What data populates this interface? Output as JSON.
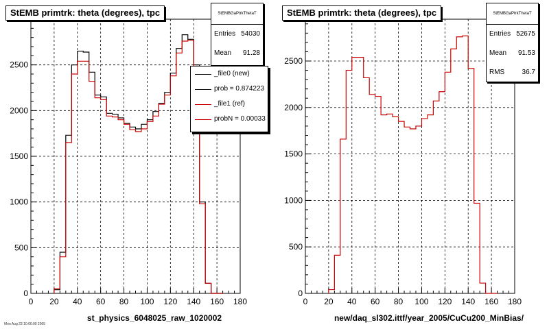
{
  "charts": [
    {
      "title": "StEMB primtrk: theta (degrees), tpc",
      "stats": {
        "name": "StEMBGaPtrkThetaT",
        "entries_label": "Entries",
        "entries": "54030",
        "mean_label": "Mean",
        "mean": "91.28"
      },
      "xlabel": "st_physics_6048025_raw_1020002",
      "legend": [
        {
          "label": "_file0 (new)",
          "color": "#000000"
        },
        {
          "label": "prob = 0.874223",
          "color": "#000000"
        },
        {
          "label": "_file1 (ref)",
          "color": "#cc0000"
        },
        {
          "label": "probN = 0.00033",
          "color": "#cc0000"
        }
      ],
      "footer": "Mon Aug 23 10:00:00 2005"
    },
    {
      "title": "StEMB primtrk: theta (degrees), tpc",
      "stats": {
        "name": "StEMBGaPtrkThetaT",
        "entries_label": "Entries",
        "entries": "52675",
        "mean_label": "Mean",
        "mean": "91.53",
        "rms_label": "RMS",
        "rms": "36.7"
      },
      "xlabel": "new/daq_sl302.ittf/year_2005/CuCu200_MinBias/"
    }
  ],
  "chart_data": [
    {
      "type": "histogram",
      "title": "StEMB primtrk: theta (degrees), tpc",
      "xlabel": "st_physics_6048025_raw_1020002",
      "ylabel": "",
      "xlim": [
        0,
        180
      ],
      "ylim": [
        0,
        3000
      ],
      "xticks": [
        0,
        20,
        40,
        60,
        80,
        100,
        120,
        140,
        160,
        180
      ],
      "yticks": [
        0,
        500,
        1000,
        1500,
        2000,
        2500
      ],
      "grid": true,
      "legend_position": "top-right",
      "bin_edges": [
        20,
        25,
        30,
        35,
        40,
        45,
        50,
        55,
        60,
        65,
        70,
        75,
        80,
        85,
        90,
        95,
        100,
        105,
        110,
        115,
        120,
        125,
        130,
        135,
        140,
        145,
        150,
        155,
        160,
        165
      ],
      "series": [
        {
          "name": "_file0 (new)",
          "color": "#000000",
          "values": [
            40,
            450,
            1730,
            2500,
            2650,
            2640,
            2420,
            2170,
            2150,
            1970,
            1960,
            1920,
            1860,
            1820,
            1800,
            1850,
            1900,
            1990,
            2080,
            2200,
            2410,
            2680,
            2830,
            2780,
            2500,
            1000,
            110,
            0,
            0
          ]
        },
        {
          "name": "_file1 (ref)",
          "color": "#cc0000",
          "values": [
            50,
            400,
            1650,
            2400,
            2540,
            2540,
            2320,
            2140,
            2120,
            1940,
            1930,
            1900,
            1850,
            1790,
            1770,
            1800,
            1880,
            1940,
            2070,
            2170,
            2380,
            2630,
            2760,
            2770,
            2420,
            980,
            110,
            0,
            0
          ]
        }
      ]
    },
    {
      "type": "histogram",
      "title": "StEMB primtrk: theta (degrees), tpc",
      "xlabel": "new/daq_sl302.ittf/year_2005/CuCu200_MinBias/",
      "ylabel": "",
      "xlim": [
        0,
        180
      ],
      "ylim": [
        0,
        2950
      ],
      "xticks": [
        0,
        20,
        40,
        60,
        80,
        100,
        120,
        140,
        160,
        180
      ],
      "yticks": [
        0,
        500,
        1000,
        1500,
        2000,
        2500
      ],
      "grid": true,
      "bin_edges": [
        20,
        25,
        30,
        35,
        40,
        45,
        50,
        55,
        60,
        65,
        70,
        75,
        80,
        85,
        90,
        95,
        100,
        105,
        110,
        115,
        120,
        125,
        130,
        135,
        140,
        145,
        150,
        155,
        160,
        165
      ],
      "series": [
        {
          "name": "",
          "color": "#cc0000",
          "values": [
            40,
            410,
            1660,
            2400,
            2540,
            2540,
            2320,
            2140,
            2120,
            1920,
            1930,
            1900,
            1850,
            1790,
            1770,
            1800,
            1880,
            1920,
            2070,
            2170,
            2380,
            2630,
            2760,
            2770,
            2420,
            970,
            110,
            0,
            0
          ]
        }
      ]
    }
  ]
}
